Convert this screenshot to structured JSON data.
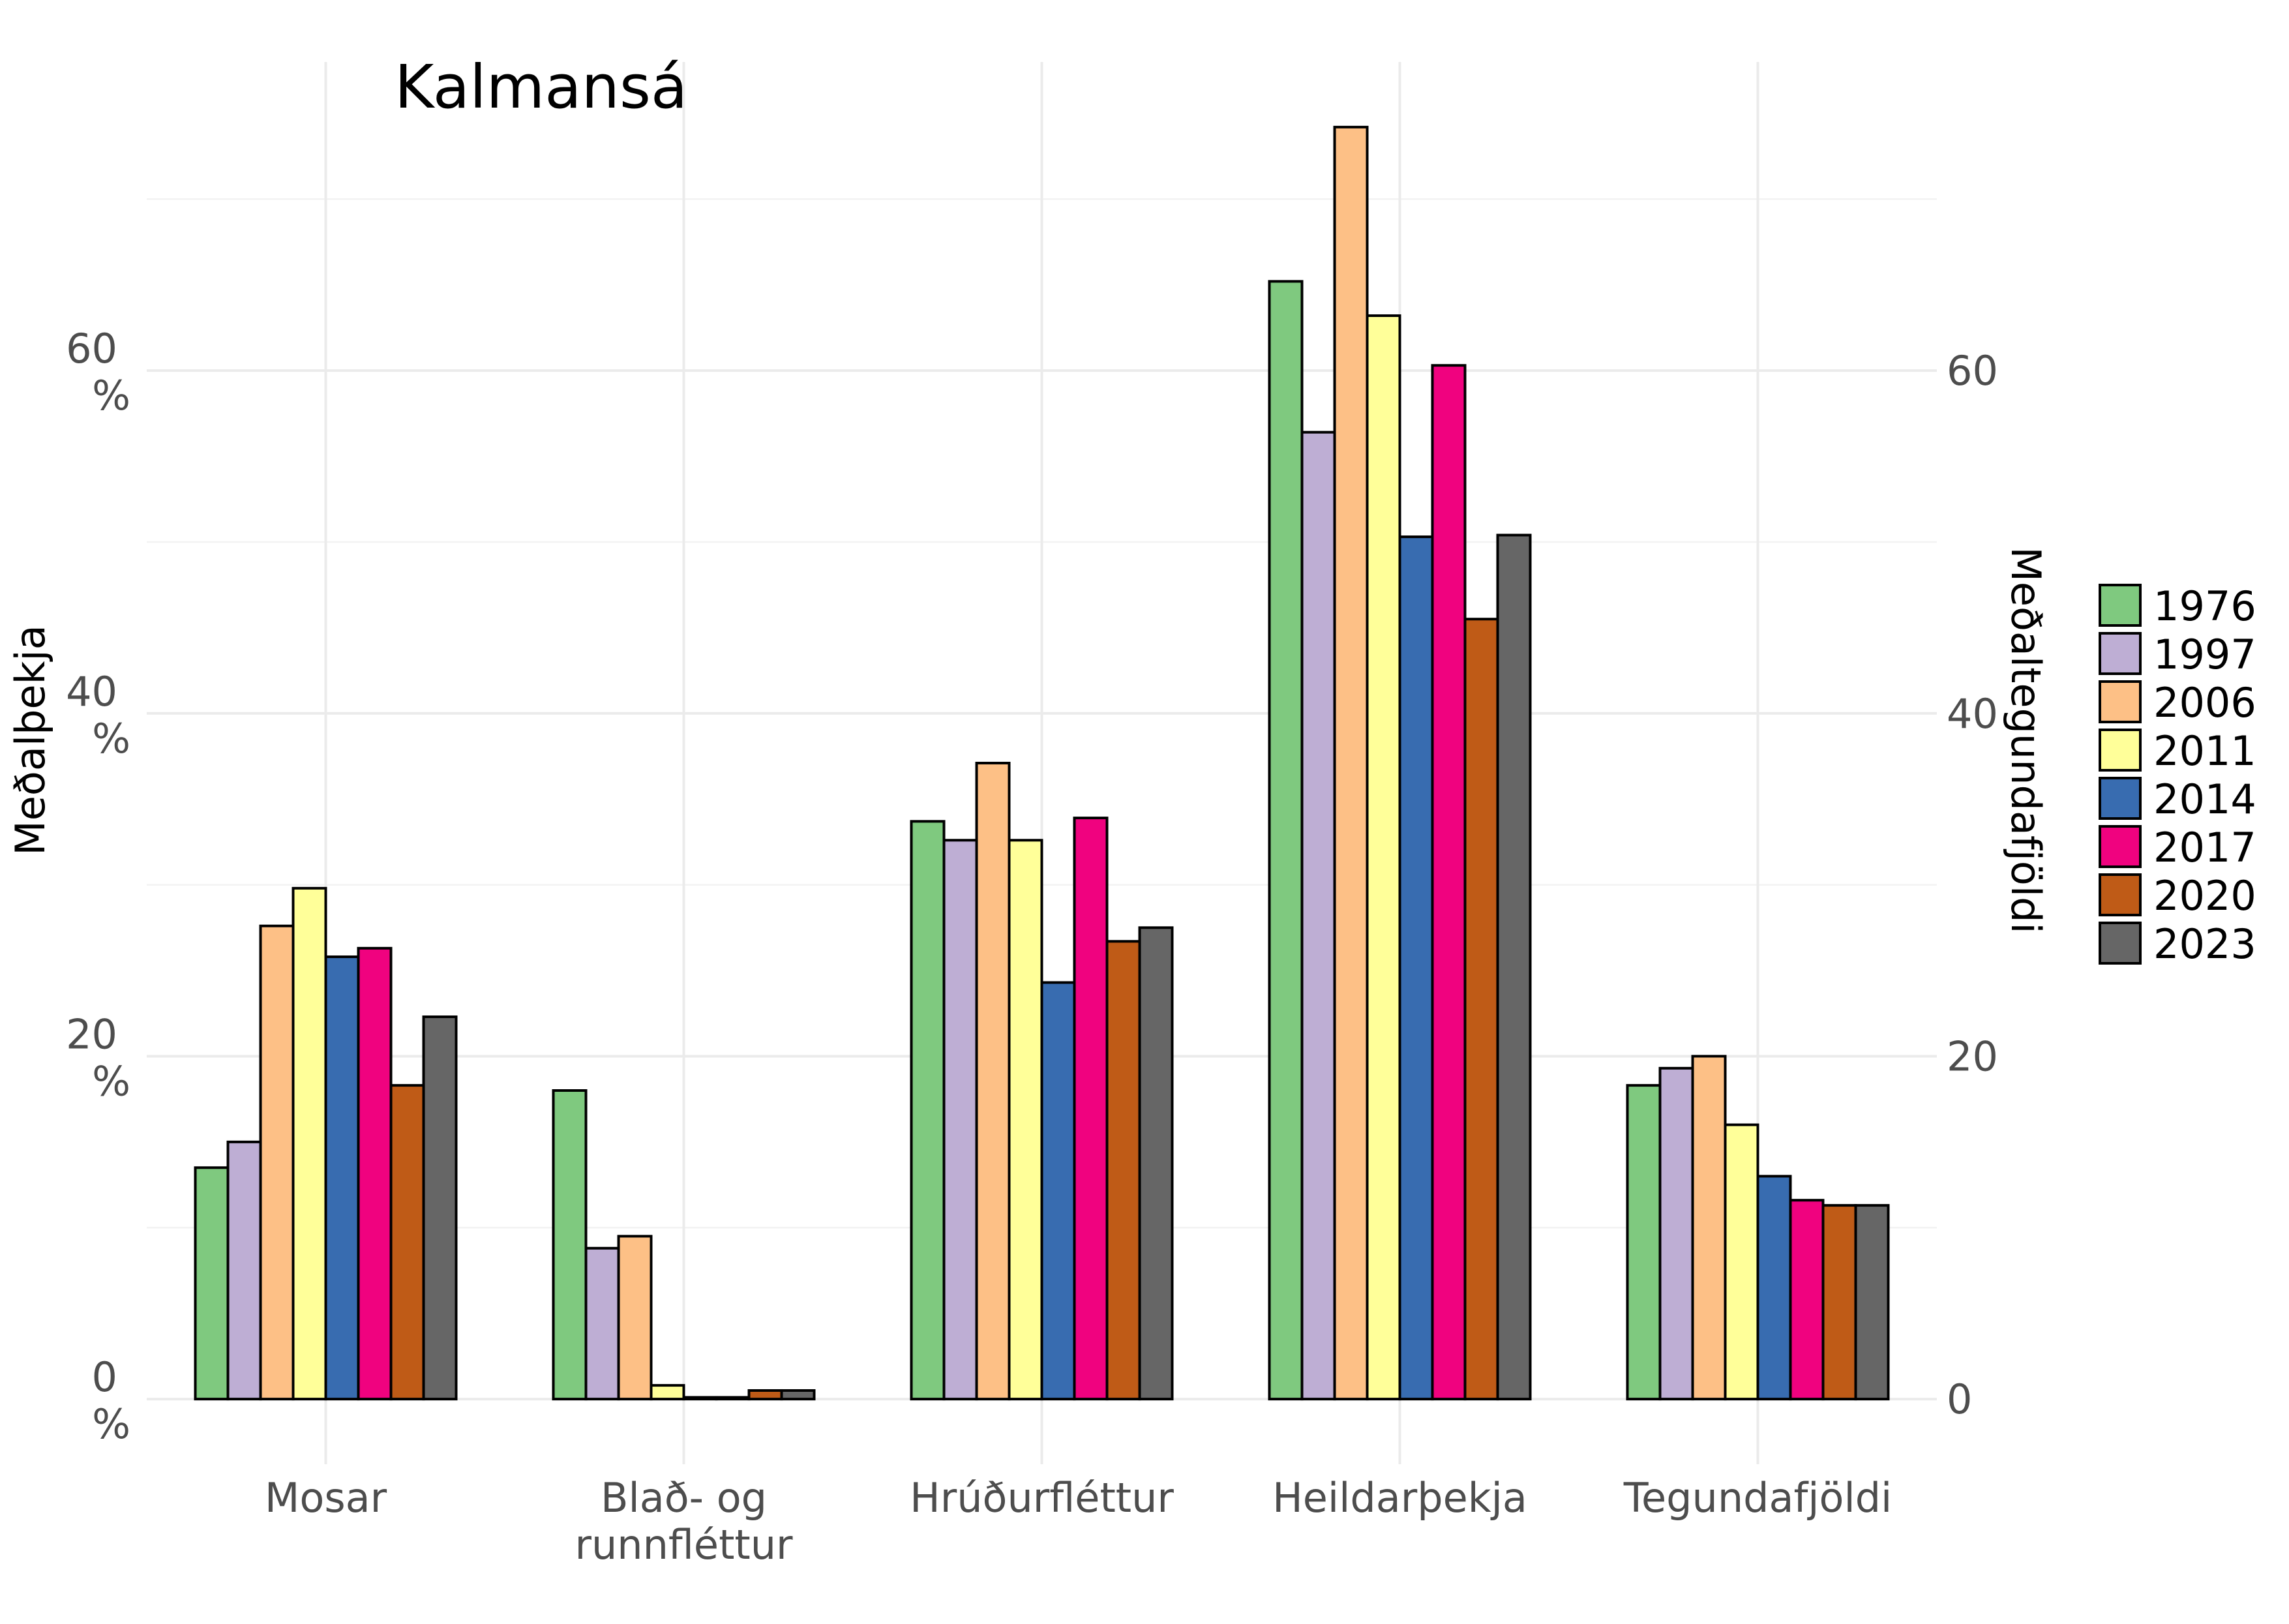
{
  "chart_data": {
    "type": "bar",
    "title": "Kalmansá",
    "ylabel": "Meðalþekja",
    "ylabel_right": "Meðaltegundafjöldi",
    "categories": [
      "Mosar",
      "Blað- og runnfléttur",
      "Hrúðurfléttur",
      "Heildarþekja",
      "Tegundafjöldi"
    ],
    "category_lines": [
      [
        "Mosar"
      ],
      [
        "Blað- og",
        "runnfléttur"
      ],
      [
        "Hrúðurfléttur"
      ],
      [
        "Heildarþekja"
      ],
      [
        "Tegundafjöldi"
      ]
    ],
    "ylim": [
      -3.8,
      78
    ],
    "y_ticks": [
      0,
      20,
      40,
      60
    ],
    "y_tick_labels_left": [
      [
        "0",
        "%"
      ],
      [
        "20",
        "%"
      ],
      [
        "40",
        "%"
      ],
      [
        "60",
        "%"
      ]
    ],
    "y_tick_labels_right": [
      "0",
      "20",
      "40",
      "60"
    ],
    "grid": true,
    "legend_position": "right",
    "series": [
      {
        "name": "1976",
        "color": "#7FC97F",
        "values": [
          13.5,
          18.0,
          33.7,
          65.2,
          18.3
        ]
      },
      {
        "name": "1997",
        "color": "#BEAED4",
        "values": [
          15.0,
          8.8,
          32.6,
          56.4,
          19.3
        ]
      },
      {
        "name": "2006",
        "color": "#FDC086",
        "values": [
          27.6,
          9.5,
          37.1,
          74.2,
          20.0
        ]
      },
      {
        "name": "2011",
        "color": "#FFFF99",
        "values": [
          29.8,
          0.8,
          32.6,
          63.2,
          16.0
        ]
      },
      {
        "name": "2014",
        "color": "#386CB0",
        "values": [
          25.8,
          0.1,
          24.3,
          50.3,
          13.0
        ]
      },
      {
        "name": "2017",
        "color": "#F0027F",
        "values": [
          26.3,
          0.1,
          33.9,
          60.3,
          11.6
        ]
      },
      {
        "name": "2020",
        "color": "#BF5B17",
        "values": [
          18.3,
          0.5,
          26.7,
          45.5,
          11.3
        ]
      },
      {
        "name": "2023",
        "color": "#666666",
        "values": [
          22.3,
          0.5,
          27.5,
          50.4,
          11.3
        ]
      }
    ]
  }
}
